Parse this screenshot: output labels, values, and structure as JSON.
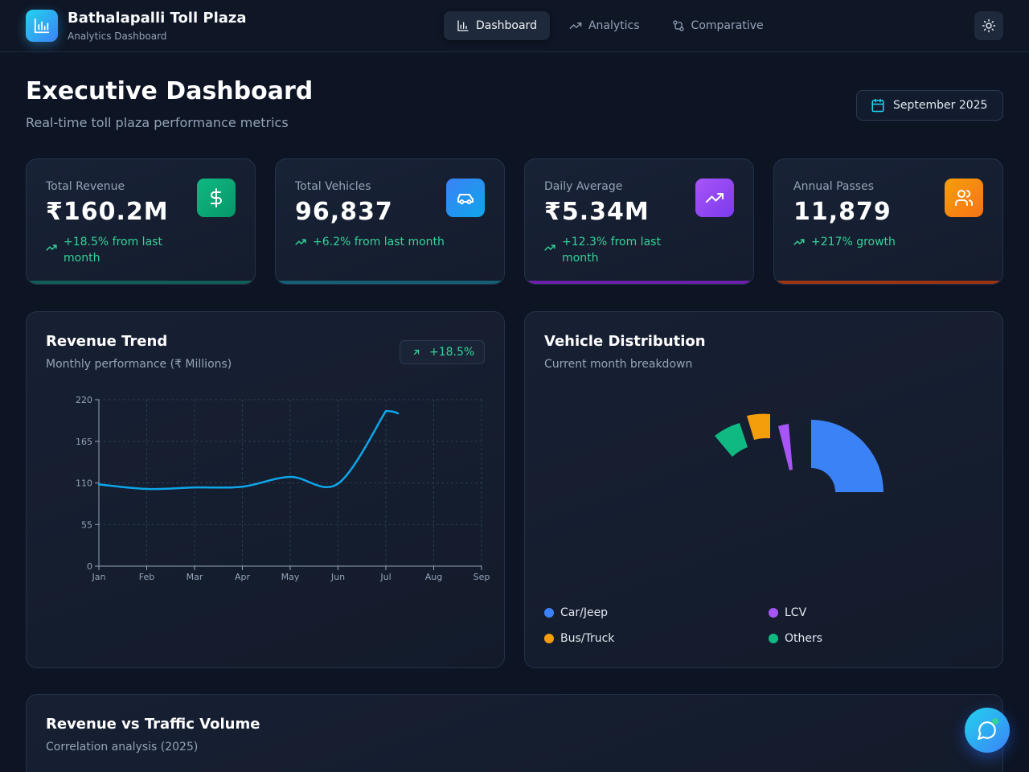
{
  "app": {
    "title": "Bathalapalli Toll Plaza",
    "subtitle": "Analytics Dashboard"
  },
  "nav": {
    "items": [
      {
        "label": "Dashboard",
        "icon": "bar-chart-icon",
        "active": true
      },
      {
        "label": "Analytics",
        "icon": "trending-up-icon",
        "active": false
      },
      {
        "label": "Comparative",
        "icon": "compare-icon",
        "active": false
      }
    ],
    "theme_icon": "sun-icon"
  },
  "header": {
    "title": "Executive Dashboard",
    "subtitle": "Real-time toll plaza performance metrics",
    "date_label": "September 2025"
  },
  "stats": [
    {
      "label": "Total Revenue",
      "value": "₹160.2M",
      "change": "+18.5% from last month",
      "icon": "dollar-icon",
      "icon_color": "#10b981",
      "bar_color": "#115e59"
    },
    {
      "label": "Total Vehicles",
      "value": "96,837",
      "change": "+6.2% from last month",
      "icon": "car-icon",
      "icon_color": "#3b82f6",
      "bar_color": "#155e75"
    },
    {
      "label": "Daily Average",
      "value": "₹5.34M",
      "change": "+12.3% from last month",
      "icon": "trending-up-icon",
      "icon_color": "#a855f7",
      "bar_color": "#6b21a8"
    },
    {
      "label": "Annual Passes",
      "value": "11,879",
      "change": "+217% growth",
      "icon": "users-icon",
      "icon_color": "#f97316",
      "bar_color": "#9a3412"
    }
  ],
  "revenue_panel": {
    "title": "Revenue Trend",
    "subtitle": "Monthly performance (₹ Millions)",
    "badge": "+18.5%"
  },
  "distribution_panel": {
    "title": "Vehicle Distribution",
    "subtitle": "Current month breakdown",
    "legend": [
      {
        "label": "Car/Jeep",
        "color": "#3b82f6"
      },
      {
        "label": "LCV",
        "color": "#a855f7"
      },
      {
        "label": "Bus/Truck",
        "color": "#f59e0b"
      },
      {
        "label": "Others",
        "color": "#10b981"
      }
    ]
  },
  "correlation_panel": {
    "title": "Revenue vs Traffic Volume",
    "subtitle": "Correlation analysis (2025)"
  },
  "chat_icon": "chat-bubble-icon",
  "chart_data": [
    {
      "type": "line",
      "x": [
        "Jan",
        "Feb",
        "Mar",
        "Apr",
        "May",
        "Jun",
        "Jul",
        "Aug",
        "Sep"
      ],
      "series": [
        {
          "values": [
            108,
            102,
            104,
            105,
            118,
            109,
            205,
            null,
            null
          ],
          "color": "#0ea5e9"
        }
      ],
      "yticks": [
        0,
        55,
        110,
        165,
        220
      ],
      "ylim": [
        0,
        220
      ],
      "grid": true
    },
    {
      "type": "pie",
      "style": "half-donut, partially animated",
      "slices": [
        {
          "label": "Car/Jeep",
          "color": "#3b82f6"
        },
        {
          "label": "LCV",
          "color": "#a855f7"
        },
        {
          "label": "Bus/Truck",
          "color": "#f59e0b"
        },
        {
          "label": "Others",
          "color": "#10b981"
        }
      ]
    }
  ]
}
